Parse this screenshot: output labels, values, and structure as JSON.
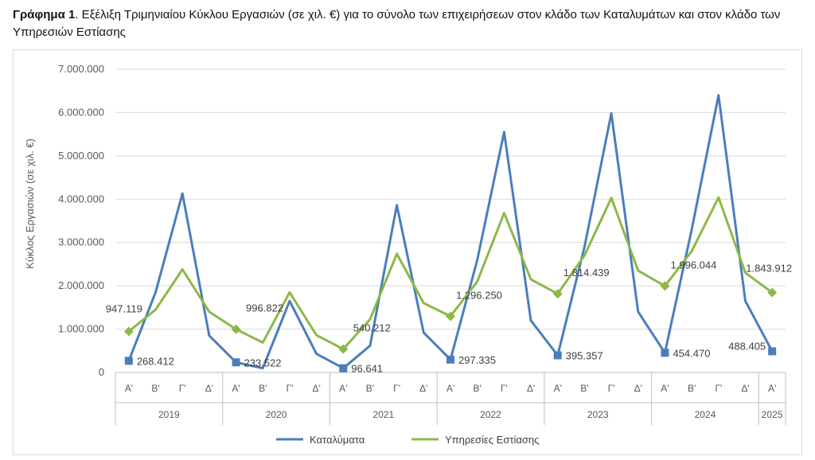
{
  "caption": {
    "prefix": "Γράφημα 1",
    "text": ". Εξέλιξη Τριμηνιαίου Κύκλου Εργασιών (σε χιλ. €) για το σύνολο των επιχειρήσεων στον κλάδο των Καταλυμάτων και στον κλάδο των Υπηρεσιών Εστίασης"
  },
  "chart_data": {
    "type": "line",
    "ylabel": "Κύκλος Εργασιών (σε χιλ. €)",
    "xlabel": "",
    "ylim": [
      0,
      7000000
    ],
    "yticks": [
      0,
      1000000,
      2000000,
      3000000,
      4000000,
      5000000,
      6000000,
      7000000
    ],
    "ytick_labels": [
      "0",
      "1.000.000",
      "2.000.000",
      "3.000.000",
      "4.000.000",
      "5.000.000",
      "6.000.000",
      "7.000.000"
    ],
    "grid": true,
    "legend": "bottom",
    "categories": [
      "Α'",
      "Β'",
      "Γ'",
      "Δ'",
      "Α'",
      "Β'",
      "Γ'",
      "Δ'",
      "Α'",
      "Β'",
      "Γ'",
      "Δ'",
      "Α'",
      "Β'",
      "Γ'",
      "Δ'",
      "Α'",
      "Β'",
      "Γ'",
      "Δ'",
      "Α'",
      "Β'",
      "Γ'",
      "Δ'",
      "Α'"
    ],
    "years": [
      {
        "label": "2019",
        "count": 4
      },
      {
        "label": "2020",
        "count": 4
      },
      {
        "label": "2021",
        "count": 4
      },
      {
        "label": "2022",
        "count": 4
      },
      {
        "label": "2023",
        "count": 4
      },
      {
        "label": "2024",
        "count": 4
      },
      {
        "label": "2025",
        "count": 1
      }
    ],
    "series": [
      {
        "name": "Καταλύματα",
        "color": "#4a7ebb",
        "marker": "square",
        "values": [
          268412,
          1850000,
          4130000,
          850000,
          233522,
          100000,
          1650000,
          430000,
          96641,
          620000,
          3860000,
          920000,
          297335,
          2600000,
          5550000,
          1200000,
          395357,
          2900000,
          5980000,
          1400000,
          454470,
          3300000,
          6400000,
          1650000,
          488405
        ],
        "labels": {
          "0": "268.412",
          "4": "233.522",
          "8": "96.641",
          "12": "297.335",
          "16": "395.357",
          "20": "454.470",
          "24": "488.405"
        }
      },
      {
        "name": "Υπηρεσίες Εστίασης",
        "color": "#8db848",
        "marker": "diamond",
        "values": [
          947119,
          1450000,
          2380000,
          1400000,
          996822,
          690000,
          1850000,
          860000,
          540212,
          1230000,
          2740000,
          1600000,
          1296250,
          2100000,
          3680000,
          2150000,
          1814439,
          2700000,
          4030000,
          2350000,
          1996044,
          2800000,
          4040000,
          2300000,
          1843912
        ],
        "labels": {
          "0": "947.119",
          "4": "996.822",
          "8": "540.212",
          "12": "1.296.250",
          "16": "1.814.439",
          "20": "1.996.044",
          "24": "1.843.912"
        }
      }
    ]
  }
}
